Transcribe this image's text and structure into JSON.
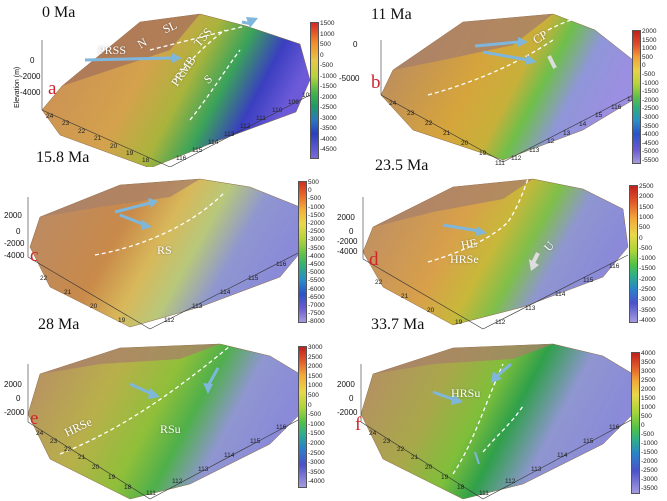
{
  "panels": [
    {
      "age": "0 Ma",
      "letter": "a",
      "labels": [
        "PRSS",
        "N",
        "SL",
        "TSS",
        "PRMB",
        "S"
      ],
      "z_ticks": [
        "0",
        "-2000",
        "-4000"
      ],
      "z_axis_title": "Elevation (m)",
      "y_ticks": [
        "24",
        "23",
        "22",
        "21",
        "20",
        "19",
        "18"
      ],
      "x_ticks": [
        "116",
        "115",
        "114",
        "113",
        "112",
        "111",
        "110",
        "109",
        "108"
      ],
      "colorbar_ticks": [
        "1500",
        "1000",
        "500",
        "0",
        "-500",
        "-1000",
        "-1500",
        "-2000",
        "-2500",
        "-3000",
        "-3500",
        "-4000",
        "-4500"
      ]
    },
    {
      "age": "11 Ma",
      "letter": "b",
      "labels": [
        "CP"
      ],
      "z_ticks": [
        "0",
        "-5000"
      ],
      "y_ticks": [
        "24",
        "23",
        "22",
        "21",
        "20",
        "19"
      ],
      "x_ticks": [
        "112",
        "111",
        "113",
        "116",
        "15",
        "14",
        "13",
        "12",
        "11"
      ],
      "colorbar_ticks": [
        "2000",
        "1500",
        "1000",
        "500",
        "0",
        "-500",
        "-1000",
        "-1500",
        "-2000",
        "-2500",
        "-3000",
        "-3500",
        "-4000",
        "-4500",
        "-5000",
        "-5500"
      ]
    },
    {
      "age": "15.8 Ma",
      "letter": "c",
      "labels": [
        "RS"
      ],
      "z_ticks": [
        "2000",
        "0",
        "-2000",
        "-4000"
      ],
      "y_ticks": [
        "22",
        "21",
        "20",
        "19"
      ],
      "x_ticks": [
        "112",
        "113",
        "114",
        "115",
        "116"
      ],
      "colorbar_ticks": [
        "500",
        "0",
        "-500",
        "-1000",
        "-1500",
        "-2000",
        "-2500",
        "-3000",
        "-3500",
        "-4000",
        "-4500",
        "-5000",
        "-5500",
        "-6000",
        "-6500",
        "-7000",
        "-7500",
        "-8000"
      ]
    },
    {
      "age": "23.5 Ma",
      "letter": "d",
      "labels": [
        "HE",
        "HRSe",
        "U"
      ],
      "z_ticks": [
        "2000",
        "0",
        "-2000",
        "-4000"
      ],
      "y_ticks": [
        "22",
        "21",
        "20",
        "19"
      ],
      "x_ticks": [
        "112",
        "113",
        "114",
        "115",
        "116"
      ],
      "colorbar_ticks": [
        "2500",
        "2000",
        "1500",
        "1000",
        "500",
        "0",
        "-500",
        "-1000",
        "-1500",
        "-2000",
        "-2500",
        "-3000",
        "-3500",
        "-4000"
      ]
    },
    {
      "age": "28 Ma",
      "letter": "e",
      "labels": [
        "RSu",
        "HRSe"
      ],
      "z_ticks": [
        "2000",
        "0",
        "-2000"
      ],
      "y_ticks": [
        "24",
        "23",
        "22",
        "21",
        "20",
        "19",
        "18"
      ],
      "x_ticks": [
        "111",
        "112",
        "113",
        "114",
        "115",
        "116"
      ],
      "colorbar_ticks": [
        "3000",
        "2500",
        "2000",
        "1500",
        "1000",
        "500",
        "0",
        "-500",
        "-1000",
        "-1500",
        "-2000",
        "-2500",
        "-3000",
        "-3500",
        "-4000"
      ]
    },
    {
      "age": "33.7 Ma",
      "letter": "f",
      "labels": [
        "HRSu"
      ],
      "z_ticks": [
        "2000",
        "0",
        "-2000"
      ],
      "y_ticks": [
        "24",
        "23",
        "22",
        "21",
        "20",
        "19",
        "18"
      ],
      "x_ticks": [
        "111",
        "112",
        "113",
        "114",
        "115",
        "116"
      ],
      "colorbar_ticks": [
        "4000",
        "3500",
        "3000",
        "2500",
        "2000",
        "1500",
        "1000",
        "500",
        "0",
        "-500",
        "-1000",
        "-1500",
        "-2000",
        "-2500",
        "-3000",
        "-3500"
      ]
    }
  ],
  "colors": {
    "letter": "#d0242b",
    "arrow": "#7fb6dc",
    "land": "#b98a5a",
    "shelf": "#d7b152",
    "deep": "#5a4fd0"
  }
}
